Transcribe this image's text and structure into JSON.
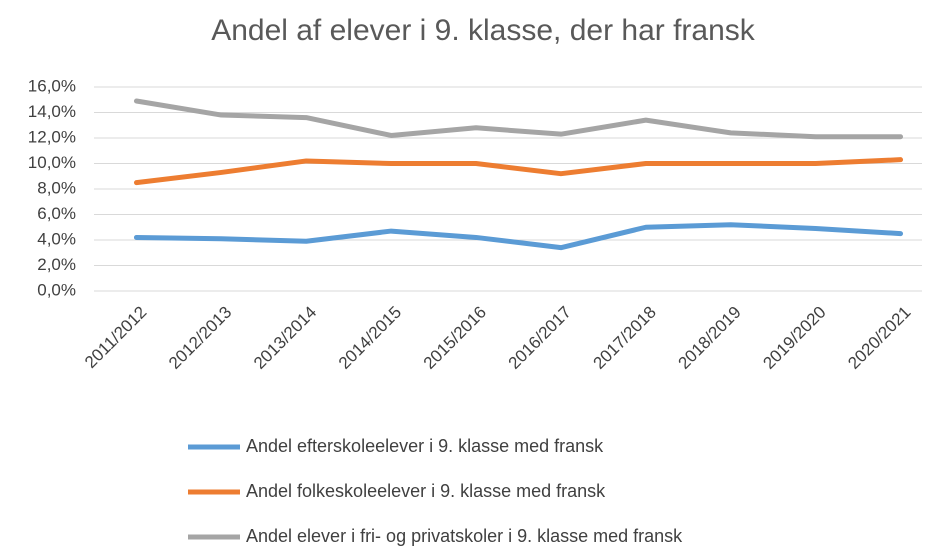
{
  "chart_data": {
    "type": "line",
    "title": "Andel af elever i 9. klasse, der har fransk",
    "categories": [
      "2011/2012",
      "2012/2013",
      "2013/2014",
      "2014/2015",
      "2015/2016",
      "2016/2017",
      "2017/2018",
      "2018/2019",
      "2019/2020",
      "2020/2021"
    ],
    "series": [
      {
        "name": "Andel efterskoleelever i 9. klasse med fransk",
        "color": "#5b9bd5",
        "values": [
          4.2,
          4.1,
          3.9,
          4.7,
          4.2,
          3.4,
          5.0,
          5.2,
          4.9,
          4.5
        ]
      },
      {
        "name": "Andel folkeskoleelever i 9. klasse med fransk",
        "color": "#ed7d31",
        "values": [
          8.5,
          9.3,
          10.2,
          10.0,
          10.0,
          9.2,
          10.0,
          10.0,
          10.0,
          10.3
        ]
      },
      {
        "name": "Andel elever i fri- og privatskoler i 9. klasse med fransk",
        "color": "#a5a5a5",
        "values": [
          14.9,
          13.8,
          13.6,
          12.2,
          12.8,
          12.3,
          13.4,
          12.4,
          12.1,
          12.1
        ]
      }
    ],
    "ylim": [
      0,
      16
    ],
    "yticks": [
      {
        "value": 0,
        "label": "0,0%"
      },
      {
        "value": 2,
        "label": "2,0%"
      },
      {
        "value": 4,
        "label": "4,0%"
      },
      {
        "value": 6,
        "label": "6,0%"
      },
      {
        "value": 8,
        "label": "8,0%"
      },
      {
        "value": 10,
        "label": "10,0%"
      },
      {
        "value": 12,
        "label": "12,0%"
      },
      {
        "value": 14,
        "label": "14,0%"
      },
      {
        "value": 16,
        "label": "16,0%"
      }
    ],
    "grid": true,
    "legend": "bottom"
  }
}
